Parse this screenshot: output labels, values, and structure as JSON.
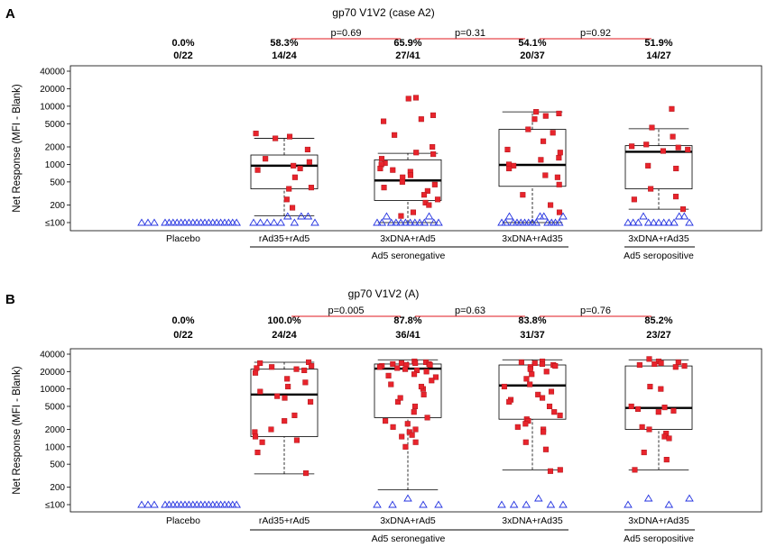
{
  "chart_data": [
    {
      "type": "box-strip",
      "panel_label": "A",
      "title": "gp70 V1V2 (case A2)",
      "ylabel": "Net Response (MFI - Blank)",
      "yscale": "log",
      "ylim": [
        60,
        45000
      ],
      "yticks": [
        100,
        200,
        500,
        1000,
        2000,
        5000,
        10000,
        20000,
        40000
      ],
      "ytick_labels": [
        "≤100",
        "200",
        "500",
        "1000",
        "2000",
        "5000",
        "10000",
        "20000",
        "40000"
      ],
      "categories": [
        "Placebo",
        "rAd35+rAd5",
        "3xDNA+rAd5",
        "3xDNA+rAd35",
        "3xDNA+rAd35"
      ],
      "response_pct": [
        "0.0%",
        "58.3%",
        "65.9%",
        "54.1%",
        "51.9%"
      ],
      "response_frac": [
        "0/22",
        "14/24",
        "27/41",
        "20/37",
        "14/27"
      ],
      "comparisons": [
        {
          "from": 1,
          "to": 2,
          "label": "p=0.69"
        },
        {
          "from": 2,
          "to": 3,
          "label": "p=0.31"
        },
        {
          "from": 3,
          "to": 4,
          "label": "p=0.92"
        }
      ],
      "group_labels": [
        {
          "from": 1,
          "to": 3,
          "label": "Ad5 seronegative"
        },
        {
          "from": 4,
          "to": 4,
          "label": "Ad5 seropositive"
        }
      ],
      "boxes": [
        null,
        {
          "q1": 380,
          "median": 950,
          "q3": 1450,
          "whisker_low": 130,
          "whisker_high": 2800
        },
        {
          "q1": 240,
          "median": 530,
          "q3": 1200,
          "whisker_low": 100,
          "whisker_high": 1550
        },
        {
          "q1": 420,
          "median": 980,
          "q3": 4000,
          "whisker_low": 100,
          "whisker_high": 8000
        },
        {
          "q1": 380,
          "median": 1650,
          "q3": 2100,
          "whisker_low": 170,
          "whisker_high": 4100
        }
      ],
      "series": [
        {
          "name": "Placebo",
          "responders": [],
          "non_responders": 22
        },
        {
          "name": "rAd35+rAd5",
          "responders": [
            3000,
            3400,
            2800,
            1800,
            1250,
            1100,
            950,
            850,
            800,
            600,
            400,
            380,
            250,
            180
          ],
          "non_responders": 10
        },
        {
          "name": "3xDNA+rAd5",
          "responders": [
            14000,
            13500,
            7000,
            6000,
            5500,
            3200,
            2000,
            1600,
            1500,
            1250,
            1050,
            1000,
            850,
            800,
            750,
            650,
            600,
            500,
            450,
            400,
            350,
            300,
            250,
            220,
            200,
            150,
            130
          ],
          "non_responders": 14
        },
        {
          "name": "3xDNA+rAd35",
          "responders": [
            8000,
            7500,
            6800,
            6000,
            4000,
            3500,
            2500,
            1800,
            1600,
            1300,
            1200,
            1000,
            950,
            850,
            650,
            600,
            450,
            300,
            200,
            150
          ],
          "non_responders": 17
        },
        {
          "name": "3xDNA+rAd35",
          "responders": [
            9000,
            4300,
            3000,
            2200,
            2050,
            1950,
            1800,
            1700,
            950,
            850,
            380,
            280,
            250,
            170
          ],
          "non_responders": 13
        }
      ]
    },
    {
      "type": "box-strip",
      "panel_label": "B",
      "title": "gp70 V1V2 (A)",
      "ylabel": "Net Response (MFI - Blank)",
      "yscale": "log",
      "ylim": [
        80,
        45000
      ],
      "yticks": [
        100,
        200,
        500,
        1000,
        2000,
        5000,
        10000,
        20000,
        40000
      ],
      "ytick_labels": [
        "≤100",
        "200",
        "500",
        "1000",
        "2000",
        "5000",
        "10000",
        "20000",
        "40000"
      ],
      "categories": [
        "Placebo",
        "rAd35+rAd5",
        "3xDNA+rAd5",
        "3xDNA+rAd35",
        "3xDNA+rAd35"
      ],
      "response_pct": [
        "0.0%",
        "100.0%",
        "87.8%",
        "83.8%",
        "85.2%"
      ],
      "response_frac": [
        "0/22",
        "24/24",
        "36/41",
        "31/37",
        "23/27"
      ],
      "comparisons": [
        {
          "from": 1,
          "to": 2,
          "label": "p=0.005"
        },
        {
          "from": 2,
          "to": 3,
          "label": "p=0.63"
        },
        {
          "from": 3,
          "to": 4,
          "label": "p=0.76"
        }
      ],
      "group_labels": [
        {
          "from": 1,
          "to": 3,
          "label": "Ad5 seronegative"
        },
        {
          "from": 4,
          "to": 4,
          "label": "Ad5 seropositive"
        }
      ],
      "boxes": [
        null,
        {
          "q1": 1500,
          "median": 8000,
          "q3": 22000,
          "whisker_low": 340,
          "whisker_high": 29000
        },
        {
          "q1": 3200,
          "median": 22500,
          "q3": 27000,
          "whisker_low": 180,
          "whisker_high": 32000
        },
        {
          "q1": 3000,
          "median": 11500,
          "q3": 26000,
          "whisker_low": 400,
          "whisker_high": 32000
        },
        {
          "q1": 2000,
          "median": 4700,
          "q3": 25000,
          "whisker_low": 400,
          "whisker_high": 32000
        }
      ],
      "series": [
        {
          "name": "Placebo",
          "responders": [],
          "non_responders": 22
        },
        {
          "name": "rAd35+rAd5",
          "responders": [
            29000,
            28000,
            25000,
            24000,
            23000,
            22000,
            21000,
            19000,
            15000,
            13000,
            11000,
            9000,
            7500,
            7000,
            6000,
            3500,
            2800,
            2000,
            1800,
            1500,
            1300,
            1200,
            800,
            350
          ],
          "non_responders": 0
        },
        {
          "name": "3xDNA+rAd5",
          "responders": [
            30000,
            29000,
            28000,
            28000,
            27000,
            27000,
            26000,
            26000,
            25000,
            24000,
            23000,
            22000,
            21000,
            20000,
            18000,
            16000,
            14000,
            12000,
            10000,
            8000,
            6000,
            5000,
            4000,
            3200,
            2800,
            2500,
            2200,
            2000,
            1800,
            1600,
            1500,
            1200,
            1000,
            7000,
            11000,
            17000
          ],
          "non_responders": 5
        },
        {
          "name": "3xDNA+rAd35",
          "responders": [
            30000,
            29000,
            28000,
            27000,
            26000,
            25000,
            24000,
            22000,
            20000,
            18000,
            15000,
            12000,
            11000,
            9000,
            8000,
            6500,
            6000,
            5000,
            4000,
            3500,
            3000,
            2800,
            2500,
            2200,
            2000,
            1800,
            1200,
            900,
            400,
            380,
            7000
          ],
          "non_responders": 6
        },
        {
          "name": "3xDNA+rAd35",
          "responders": [
            33000,
            30000,
            29000,
            28000,
            27000,
            26000,
            25000,
            24000,
            11000,
            10000,
            5000,
            4800,
            4500,
            4200,
            4000,
            2200,
            2000,
            1700,
            1500,
            1400,
            800,
            600,
            400
          ],
          "non_responders": 4
        }
      ]
    }
  ],
  "colors": {
    "responder": "#e8242c",
    "non_responder": "#2433e0",
    "pvalue_line": "#e0191f",
    "box": "#000000",
    "whisker": "#000000"
  }
}
